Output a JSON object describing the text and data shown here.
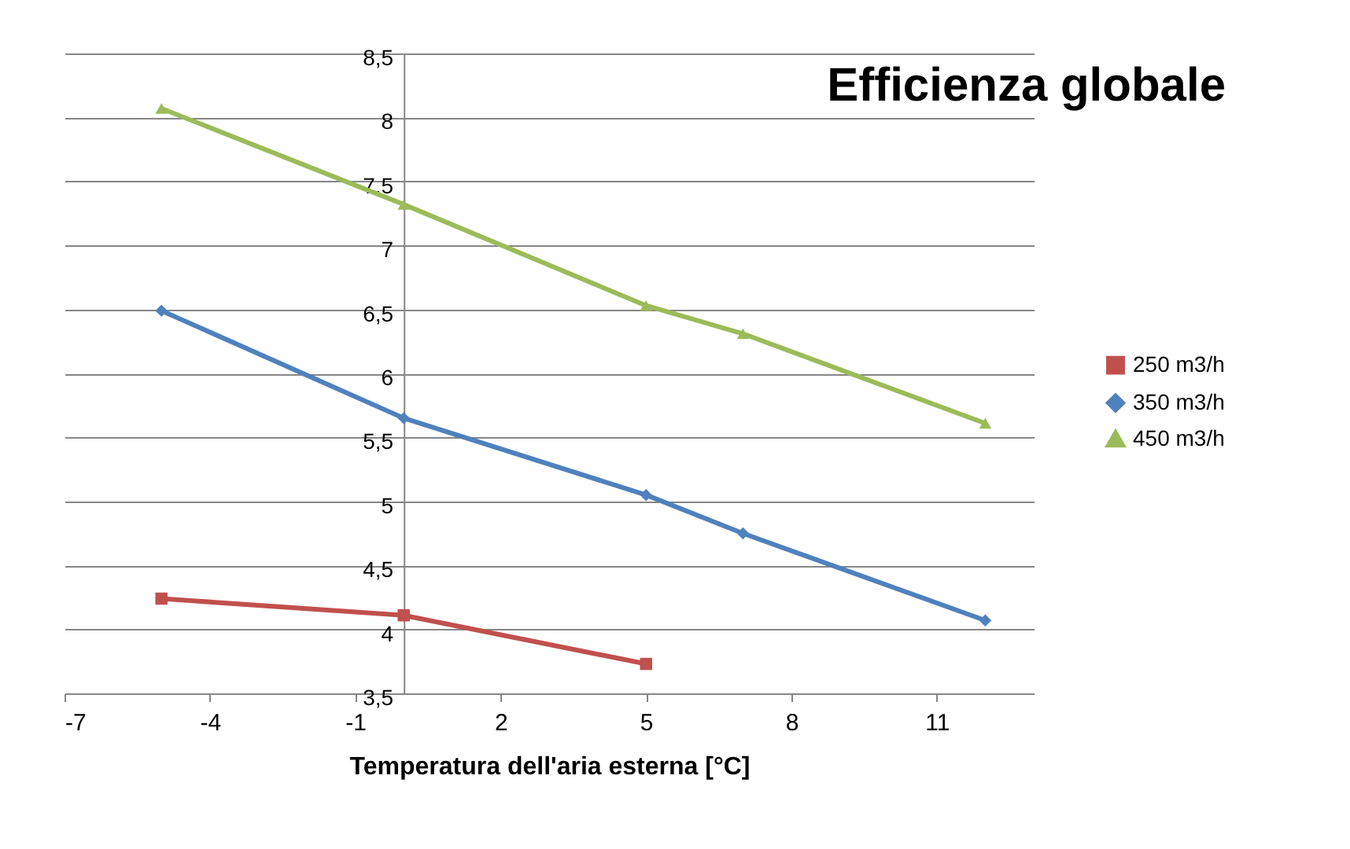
{
  "chart_data": {
    "type": "line",
    "title": "Efficienza globale",
    "xlabel": "Temperatura dell'aria esterna [°C]",
    "x": [
      -5,
      0,
      5,
      7,
      12
    ],
    "series": [
      {
        "name": "250 m3/h",
        "color": "#c0504d",
        "marker": "square",
        "values": [
          4.24,
          4.11,
          3.73,
          null,
          null
        ]
      },
      {
        "name": "350 m3/h",
        "color": "#4f81bd",
        "marker": "diamond",
        "values": [
          6.49,
          5.65,
          5.05,
          4.75,
          4.07
        ]
      },
      {
        "name": "450 m3/h",
        "color": "#9bbb59",
        "marker": "triangle",
        "values": [
          8.07,
          7.32,
          6.53,
          6.31,
          5.61
        ]
      }
    ],
    "xlim": [
      -7,
      13
    ],
    "xticks": [
      -7,
      -4,
      -1,
      2,
      5,
      8,
      11
    ],
    "ylim": [
      3.5,
      8.5
    ],
    "yticks": [
      {
        "value": 3.5,
        "label": "3,5"
      },
      4,
      {
        "value": 4.5,
        "label": "4,5"
      },
      5,
      {
        "value": 5.5,
        "label": "5,5"
      },
      6,
      {
        "value": 6.5,
        "label": "6,5"
      },
      7,
      {
        "value": 7.5,
        "label": "7,5"
      },
      8,
      {
        "value": 8.5,
        "label": "8,5"
      }
    ],
    "grid": "y",
    "legend": "right"
  }
}
